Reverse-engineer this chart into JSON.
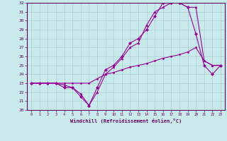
{
  "xlabel": "Windchill (Refroidissement éolien,°C)",
  "ylabel": "",
  "bg_color": "#c8eaea",
  "grid_color": "#aacccc",
  "line_color": "#990099",
  "xlim": [
    -0.5,
    23.5
  ],
  "ylim": [
    20,
    32
  ],
  "xticks": [
    0,
    1,
    2,
    3,
    4,
    5,
    6,
    7,
    8,
    9,
    10,
    11,
    12,
    13,
    14,
    15,
    16,
    17,
    18,
    19,
    20,
    21,
    22,
    23
  ],
  "yticks": [
    20,
    21,
    22,
    23,
    24,
    25,
    26,
    27,
    28,
    29,
    30,
    31,
    32
  ],
  "series": [
    {
      "x": [
        0,
        1,
        2,
        3,
        4,
        5,
        6,
        7,
        8,
        9,
        10,
        11,
        12,
        13,
        14,
        15,
        16,
        17,
        18,
        19,
        20,
        21,
        22,
        23
      ],
      "y": [
        23.0,
        23.0,
        23.0,
        23.0,
        22.5,
        22.5,
        21.5,
        20.5,
        22.5,
        24.5,
        25.0,
        26.0,
        27.5,
        28.0,
        29.0,
        30.5,
        32.0,
        32.0,
        32.0,
        31.5,
        28.5,
        25.0,
        24.0,
        25.0
      ],
      "marker": "D",
      "markersize": 2
    },
    {
      "x": [
        0,
        1,
        2,
        3,
        4,
        5,
        6,
        7,
        8,
        9,
        10,
        11,
        12,
        13,
        14,
        15,
        16,
        17,
        18,
        19,
        20,
        21,
        22,
        23
      ],
      "y": [
        23.0,
        23.0,
        23.0,
        23.0,
        22.8,
        22.5,
        21.8,
        20.5,
        22.0,
        24.0,
        24.8,
        25.8,
        27.0,
        27.5,
        29.5,
        31.0,
        31.5,
        32.0,
        32.0,
        31.5,
        31.5,
        25.5,
        25.0,
        25.0
      ],
      "marker": "^",
      "markersize": 2
    },
    {
      "x": [
        0,
        1,
        2,
        3,
        4,
        5,
        6,
        7,
        8,
        9,
        10,
        11,
        12,
        13,
        14,
        15,
        16,
        17,
        18,
        19,
        20,
        21,
        22,
        23
      ],
      "y": [
        23.0,
        23.0,
        23.0,
        23.0,
        23.0,
        23.0,
        23.0,
        23.0,
        23.5,
        24.0,
        24.2,
        24.5,
        24.8,
        25.0,
        25.2,
        25.5,
        25.8,
        26.0,
        26.2,
        26.5,
        27.0,
        25.5,
        25.0,
        25.0
      ],
      "marker": "o",
      "markersize": 1.5
    }
  ]
}
